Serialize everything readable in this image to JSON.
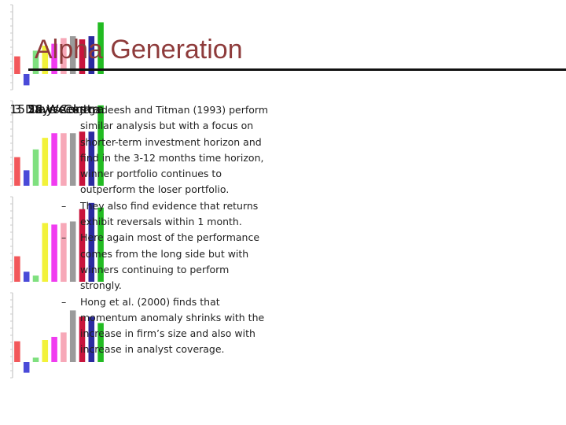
{
  "title": "Alpha Generation",
  "bullets": [
    "Jegadeesh and Titman (1993) perform similar analysis but with a focus on shorter-term investment horizon and find in the 3-12 months time horizon, winner portfolio continues to outperform the loser portfolio.",
    "They also find evidence that returns exhibit reversals within 1 month.",
    "Here again most of the performance comes from the long side but with winners continuing to perform strongly.",
    "Hong et al. (2000) finds that momentum anomaly shrinks with the increase in firm’s size and also with increase in analyst coverage."
  ],
  "panels": [
    {
      "caption": "3 Days Contra",
      "chart_data": {
        "type": "bar",
        "values": [
          28,
          -18,
          37,
          45,
          48,
          57,
          60,
          55,
          60,
          82
        ],
        "ylim": [
          -25,
          110
        ]
      }
    },
    {
      "caption": "15 Days Contra",
      "chart_data": {
        "type": "bar",
        "values": [
          37,
          20,
          47,
          62,
          68,
          68,
          68,
          70,
          70,
          104
        ],
        "ylim": [
          0,
          110
        ]
      }
    },
    {
      "caption": "26 Weeks",
      "chart_data": {
        "type": "bar",
        "values": [
          33,
          13,
          8,
          76,
          74,
          76,
          78,
          94,
          102,
          96
        ],
        "ylim": [
          0,
          110
        ]
      }
    },
    {
      "caption": "52 Weeks",
      "chart_data": {
        "type": "bar",
        "values": [
          33,
          -17,
          7,
          35,
          40,
          47,
          82,
          72,
          72,
          62
        ],
        "ylim": [
          -25,
          110
        ]
      }
    }
  ],
  "colors": [
    "#f2585b",
    "#4a4ad8",
    "#7fe07f",
    "#f2f23a",
    "#f03cf0",
    "#f7a8b8",
    "#9a9a9a",
    "#c8143c",
    "#2a2aa0",
    "#22bb22"
  ]
}
